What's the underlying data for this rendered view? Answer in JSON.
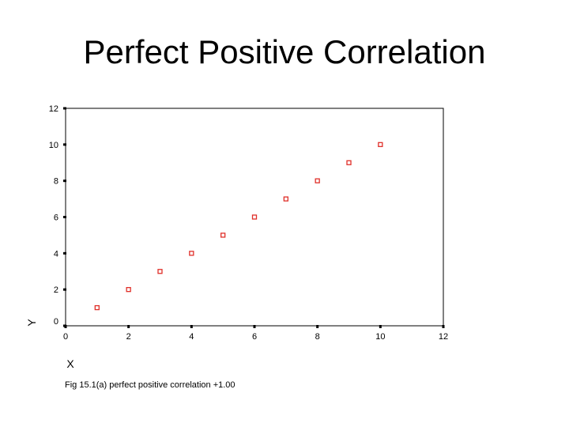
{
  "slide": {
    "title": "Perfect Positive Correlation"
  },
  "chart_data": {
    "type": "scatter",
    "x": [
      1,
      2,
      3,
      4,
      5,
      6,
      7,
      8,
      9,
      10
    ],
    "y": [
      1,
      2,
      3,
      4,
      5,
      6,
      7,
      8,
      9,
      10
    ],
    "xlabel": "X",
    "ylabel": "Y",
    "xlim": [
      0,
      12
    ],
    "ylim": [
      0,
      12
    ],
    "xticks": [
      0,
      2,
      4,
      6,
      8,
      10,
      12
    ],
    "yticks": [
      0,
      2,
      4,
      6,
      8,
      10,
      12
    ],
    "grid": false,
    "marker_color": "#e0302a",
    "caption": "Fig 15.1(a) perfect positive correlation +1.00"
  }
}
